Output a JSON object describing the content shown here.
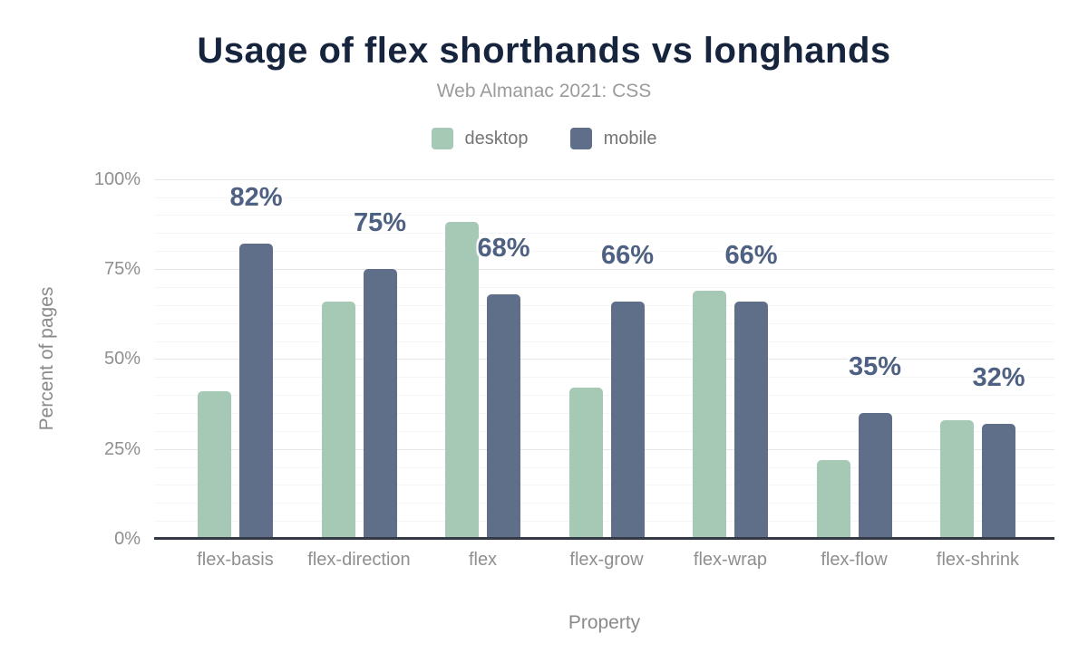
{
  "chart_data": {
    "type": "bar",
    "title": "Usage of flex shorthands vs longhands",
    "subtitle": "Web Almanac 2021: CSS",
    "xlabel": "Property",
    "ylabel": "Percent of pages",
    "ylim": [
      0,
      100
    ],
    "yticks": [
      "0%",
      "25%",
      "50%",
      "75%",
      "100%"
    ],
    "grid": {
      "minor_step": 5,
      "major_step": 25,
      "visible": true
    },
    "legend_position": "top",
    "categories": [
      "flex-basis",
      "flex-direction",
      "flex",
      "flex-grow",
      "flex-wrap",
      "flex-flow",
      "flex-shrink"
    ],
    "series": [
      {
        "name": "desktop",
        "color": "#A6C9B6",
        "values": [
          41,
          66,
          88,
          42,
          69,
          22,
          33
        ]
      },
      {
        "name": "mobile",
        "color": "#5F6E89",
        "values": [
          82,
          75,
          68,
          66,
          66,
          35,
          32
        ],
        "data_labels": [
          "82%",
          "75%",
          "68%",
          "66%",
          "66%",
          "35%",
          "32%"
        ]
      }
    ],
    "data_label_note": "labels shown above mobile bars only"
  }
}
